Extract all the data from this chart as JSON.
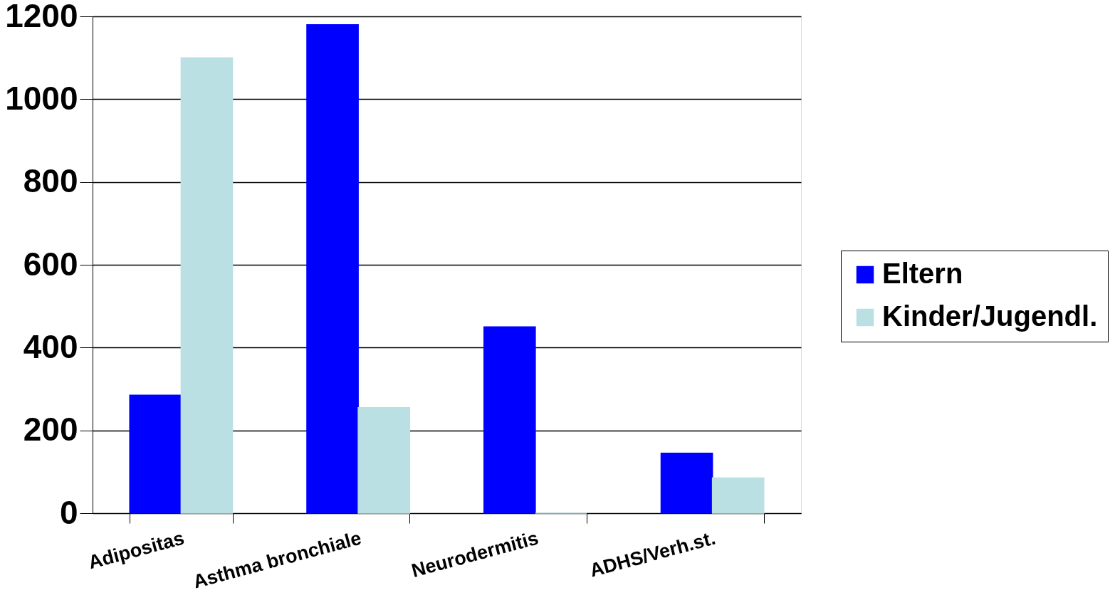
{
  "chart_data": {
    "type": "bar",
    "categories": [
      "Adipositas",
      "Asthma bronchiale",
      "Neurodermitis",
      "ADHS/Verh.st."
    ],
    "series": [
      {
        "name": "Eltern",
        "color": "#0000ff",
        "values": [
          285,
          1180,
          450,
          145
        ]
      },
      {
        "name": "Kinder/Jugendl.",
        "color": "#bbe0e3",
        "values": [
          1100,
          255,
          0,
          85
        ]
      }
    ],
    "ylim": [
      0,
      1200
    ],
    "yticks": [
      0,
      200,
      400,
      600,
      800,
      1000,
      1200
    ],
    "grid": "y",
    "legend": "right"
  }
}
